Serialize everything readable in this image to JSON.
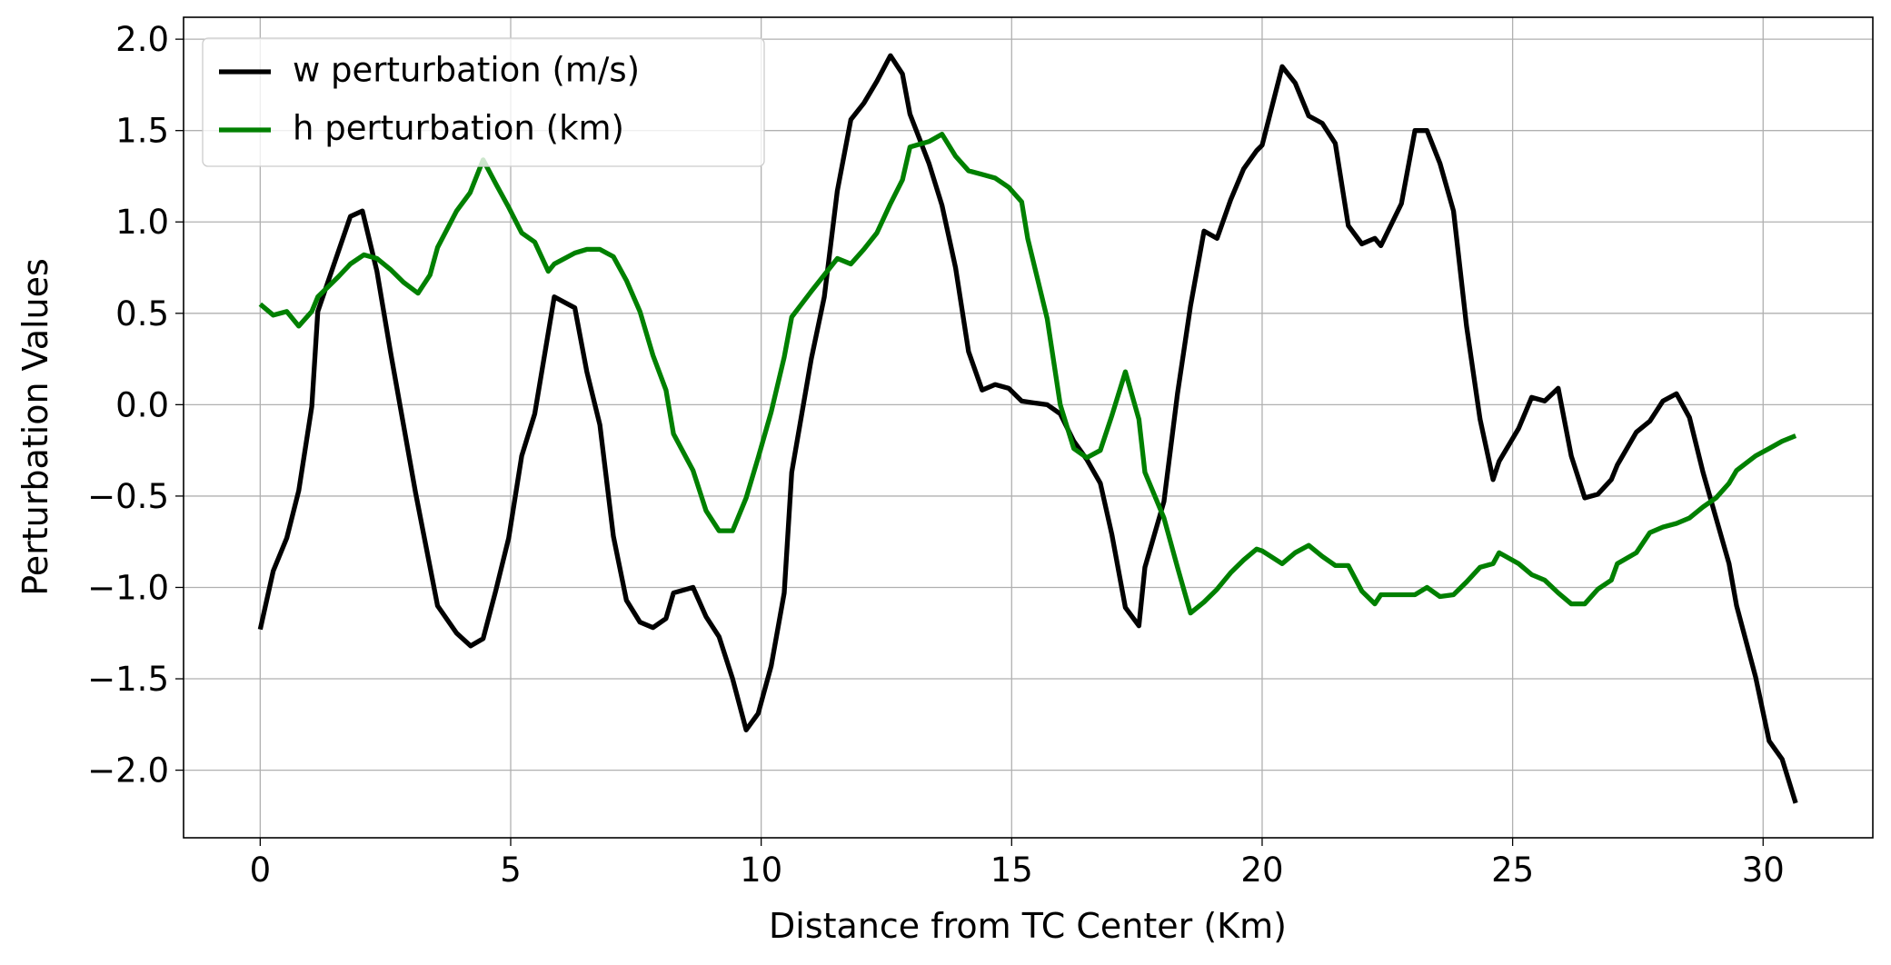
{
  "chart_data": {
    "type": "line",
    "xlabel": "Distance from TC Center (Km)",
    "ylabel": "Perturbation Values",
    "xlim": [
      -1.53,
      32.19
    ],
    "ylim": [
      -2.37,
      2.12
    ],
    "xticks": [
      0,
      5,
      10,
      15,
      20,
      25,
      30
    ],
    "yticks": [
      {
        "value": -2.0,
        "label": "−2.0"
      },
      {
        "value": -1.5,
        "label": "−1.5"
      },
      {
        "value": -1.0,
        "label": "−1.0"
      },
      {
        "value": -0.5,
        "label": "−0.5"
      },
      {
        "value": 0.0,
        "label": "0.0"
      },
      0.5,
      {
        "value": 1.0,
        "label": "1.0"
      },
      1.5,
      {
        "value": 2.0,
        "label": "2.0"
      }
    ],
    "grid": true,
    "legend": "upper left",
    "series": [
      {
        "name": "w perturbation (m/s)",
        "color": "#000000",
        "x": [
          0,
          0.26,
          0.53,
          0.77,
          1.03,
          1.15,
          1.8,
          2.04,
          2.33,
          2.6,
          2.86,
          3.1,
          3.37,
          3.54,
          3.92,
          4.2,
          4.45,
          4.7,
          4.96,
          5.22,
          5.48,
          5.87,
          6.28,
          6.52,
          6.78,
          7.05,
          7.31,
          7.58,
          7.84,
          8.1,
          8.25,
          8.64,
          8.9,
          9.16,
          9.43,
          9.7,
          9.94,
          10.2,
          10.46,
          10.61,
          11.0,
          11.26,
          11.52,
          11.79,
          12.05,
          12.31,
          12.58,
          12.82,
          12.97,
          13.35,
          13.61,
          13.88,
          14.14,
          14.41,
          14.67,
          14.94,
          15.2,
          15.44,
          15.71,
          15.97,
          16.24,
          16.5,
          16.77,
          17.0,
          17.27,
          17.54,
          17.66,
          18.04,
          18.31,
          18.57,
          18.84,
          19.1,
          19.37,
          19.63,
          19.89,
          20.0,
          20.4,
          20.66,
          20.93,
          21.2,
          21.46,
          21.72,
          21.99,
          22.25,
          22.37,
          22.78,
          23.05,
          23.29,
          23.55,
          23.82,
          24.08,
          24.35,
          24.61,
          24.73,
          25.12,
          25.38,
          25.64,
          25.91,
          26.17,
          26.44,
          26.7,
          26.97,
          27.09,
          27.47,
          27.74,
          28.0,
          28.27,
          28.53,
          28.8,
          29.06,
          29.32,
          29.47,
          29.85,
          30.12,
          30.38,
          30.65
        ],
        "values": [
          -1.23,
          -0.91,
          -0.73,
          -0.47,
          -0.01,
          0.51,
          1.03,
          1.06,
          0.73,
          0.29,
          -0.11,
          -0.48,
          -0.86,
          -1.1,
          -1.25,
          -1.32,
          -1.28,
          -1.02,
          -0.73,
          -0.28,
          -0.05,
          0.59,
          0.53,
          0.18,
          -0.11,
          -0.72,
          -1.07,
          -1.19,
          -1.22,
          -1.17,
          -1.03,
          -1.0,
          -1.16,
          -1.27,
          -1.5,
          -1.78,
          -1.69,
          -1.43,
          -1.03,
          -0.37,
          0.25,
          0.59,
          1.17,
          1.56,
          1.65,
          1.77,
          1.91,
          1.81,
          1.59,
          1.32,
          1.09,
          0.75,
          0.29,
          0.08,
          0.11,
          0.09,
          0.02,
          0.01,
          0.0,
          -0.05,
          -0.2,
          -0.3,
          -0.43,
          -0.71,
          -1.11,
          -1.21,
          -0.89,
          -0.53,
          0.06,
          0.54,
          0.95,
          0.91,
          1.12,
          1.29,
          1.39,
          1.42,
          1.85,
          1.76,
          1.58,
          1.54,
          1.43,
          0.98,
          0.88,
          0.91,
          0.87,
          1.1,
          1.5,
          1.5,
          1.32,
          1.06,
          0.43,
          -0.08,
          -0.41,
          -0.31,
          -0.13,
          0.04,
          0.02,
          0.09,
          -0.28,
          -0.51,
          -0.49,
          -0.41,
          -0.33,
          -0.15,
          -0.09,
          0.02,
          0.06,
          -0.07,
          -0.37,
          -0.62,
          -0.87,
          -1.1,
          -1.49,
          -1.84,
          -1.94,
          -2.18
        ]
      },
      {
        "name": "h perturbation (km)",
        "color": "#008000",
        "x": [
          0,
          0.26,
          0.53,
          0.77,
          1.03,
          1.15,
          1.56,
          1.8,
          2.07,
          2.33,
          2.6,
          2.86,
          3.15,
          3.39,
          3.54,
          3.92,
          4.19,
          4.45,
          4.72,
          4.96,
          5.22,
          5.48,
          5.75,
          5.87,
          6.28,
          6.52,
          6.78,
          7.05,
          7.31,
          7.58,
          7.84,
          8.1,
          8.25,
          8.64,
          8.9,
          9.16,
          9.43,
          9.7,
          9.94,
          10.2,
          10.46,
          10.61,
          11.0,
          11.26,
          11.52,
          11.79,
          12.05,
          12.31,
          12.58,
          12.82,
          12.97,
          13.35,
          13.61,
          13.88,
          14.14,
          14.41,
          14.67,
          14.94,
          15.2,
          15.32,
          15.71,
          15.97,
          16.24,
          16.5,
          16.77,
          17.0,
          17.27,
          17.54,
          17.66,
          18.04,
          18.31,
          18.57,
          18.84,
          19.1,
          19.37,
          19.63,
          19.89,
          20.0,
          20.4,
          20.66,
          20.93,
          21.2,
          21.46,
          21.72,
          21.99,
          22.25,
          22.37,
          22.78,
          23.05,
          23.29,
          23.55,
          23.82,
          24.08,
          24.35,
          24.61,
          24.73,
          25.12,
          25.38,
          25.64,
          25.91,
          26.17,
          26.44,
          26.7,
          26.97,
          27.09,
          27.47,
          27.74,
          28.0,
          28.27,
          28.53,
          28.8,
          29.06,
          29.32,
          29.47,
          29.85,
          30.12,
          30.38,
          30.65
        ],
        "values": [
          0.55,
          0.49,
          0.51,
          0.43,
          0.51,
          0.59,
          0.7,
          0.77,
          0.82,
          0.8,
          0.74,
          0.67,
          0.61,
          0.71,
          0.86,
          1.06,
          1.16,
          1.34,
          1.2,
          1.08,
          0.94,
          0.89,
          0.73,
          0.77,
          0.83,
          0.85,
          0.85,
          0.81,
          0.68,
          0.51,
          0.27,
          0.08,
          -0.16,
          -0.36,
          -0.58,
          -0.69,
          -0.69,
          -0.51,
          -0.29,
          -0.04,
          0.26,
          0.48,
          0.62,
          0.71,
          0.8,
          0.77,
          0.85,
          0.94,
          1.1,
          1.23,
          1.41,
          1.44,
          1.48,
          1.36,
          1.28,
          1.26,
          1.24,
          1.19,
          1.11,
          0.91,
          0.47,
          0.0,
          -0.24,
          -0.29,
          -0.25,
          -0.06,
          0.18,
          -0.08,
          -0.37,
          -0.62,
          -0.89,
          -1.14,
          -1.08,
          -1.01,
          -0.92,
          -0.85,
          -0.79,
          -0.8,
          -0.87,
          -0.81,
          -0.77,
          -0.83,
          -0.88,
          -0.88,
          -1.02,
          -1.09,
          -1.04,
          -1.04,
          -1.04,
          -1.0,
          -1.05,
          -1.04,
          -0.97,
          -0.89,
          -0.87,
          -0.81,
          -0.87,
          -0.93,
          -0.96,
          -1.03,
          -1.09,
          -1.09,
          -1.01,
          -0.96,
          -0.87,
          -0.81,
          -0.7,
          -0.67,
          -0.65,
          -0.62,
          -0.56,
          -0.51,
          -0.43,
          -0.36,
          -0.28,
          -0.24,
          -0.2,
          -0.17
        ]
      }
    ]
  }
}
